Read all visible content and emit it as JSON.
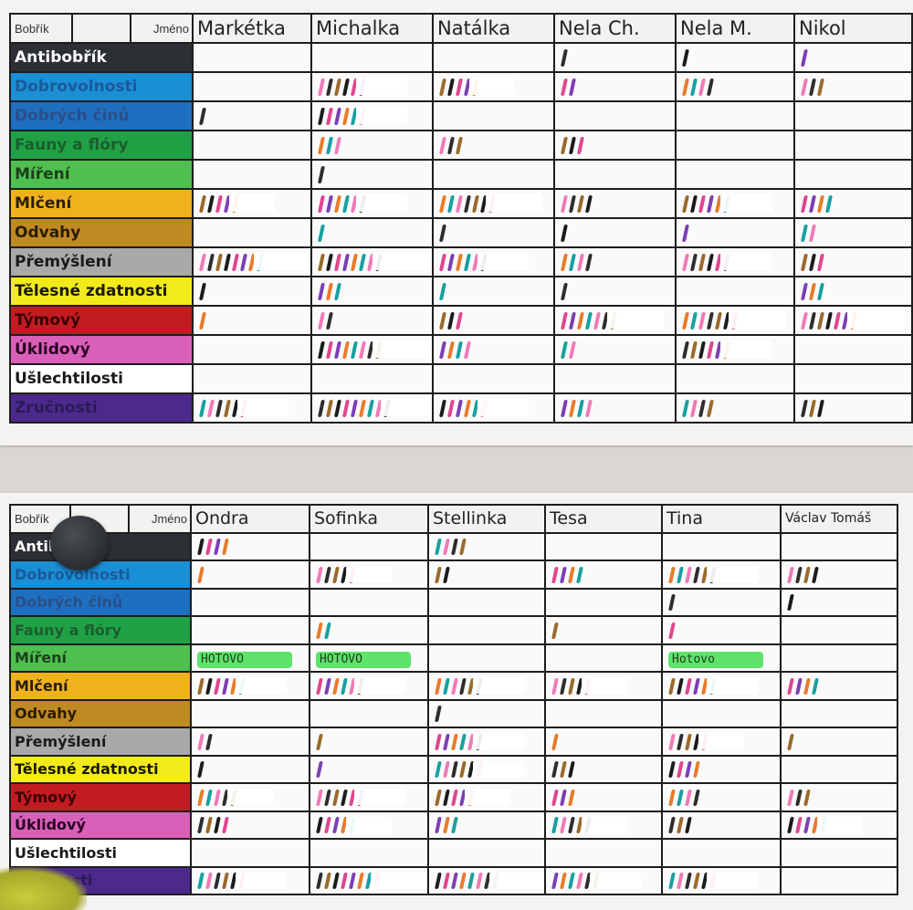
{
  "top_chart": {
    "hdr_bobrik": "Bobřík",
    "hdr_jmeno": "Jméno",
    "names": [
      "Markétka",
      "Michalka",
      "Natálka",
      "Nela Ch.",
      "Nela M.",
      "Nikol"
    ]
  },
  "bottom_chart": {
    "hdr_bobrik": "Bobřík",
    "hdr_jmeno": "Jméno",
    "names": [
      "Ondra",
      "Sofinka",
      "Stellinka",
      "Tesa",
      "Tina",
      "Václav Tomáš"
    ]
  },
  "categories": [
    {
      "label": "Antibobřík",
      "color": "#2c2f33",
      "text": "#ffffff"
    },
    {
      "label": "Dobrovolnosti",
      "color": "#1a8fd6",
      "text": "#1a5a9a"
    },
    {
      "label": "Dobrých činů",
      "color": "#1f6fc0",
      "text": "#2a4f88"
    },
    {
      "label": "Fauny a flóry",
      "color": "#20a146",
      "text": "#1a5e2c"
    },
    {
      "label": "Míření",
      "color": "#4fc04f",
      "text": "#1b3f1b"
    },
    {
      "label": "Mlčení",
      "color": "#efb21e",
      "text": "#2a1e00"
    },
    {
      "label": "Odvahy",
      "color": "#c08a23",
      "text": "#2a1b00"
    },
    {
      "label": "Přemýšlení",
      "color": "#a9a9a9",
      "text": "#1a1a1a"
    },
    {
      "label": "Tělesné zdatnosti",
      "color": "#f2ea1c",
      "text": "#1a1a00"
    },
    {
      "label": "Týmový",
      "color": "#c01c22",
      "text": "#3a0000"
    },
    {
      "label": "Úklidový",
      "color": "#d960b9",
      "text": "#2a0022"
    },
    {
      "label": "Ušlechtilosti",
      "color": "#ffffff",
      "text": "#1a1a1a"
    },
    {
      "label": "Zručnosti",
      "color": "#4b2a8c",
      "text": "#2a1a55"
    }
  ],
  "hotovo_label": "HOTOVO",
  "hotovo_label_alt": "Hotovo",
  "marks_top": [
    [
      0,
      0,
      0,
      1,
      1,
      1
    ],
    [
      0,
      6,
      5,
      2,
      4,
      3
    ],
    [
      1,
      6,
      0,
      0,
      0,
      0
    ],
    [
      0,
      3,
      3,
      3,
      0,
      0
    ],
    [
      0,
      1,
      0,
      0,
      0,
      0
    ],
    [
      5,
      6,
      7,
      4,
      6,
      4
    ],
    [
      0,
      1,
      1,
      1,
      1,
      2
    ],
    [
      8,
      8,
      6,
      4,
      6,
      3
    ],
    [
      1,
      3,
      1,
      1,
      0,
      3
    ],
    [
      1,
      2,
      3,
      7,
      7,
      7
    ],
    [
      0,
      8,
      4,
      2,
      6,
      0
    ],
    [
      0,
      0,
      0,
      0,
      0,
      0
    ],
    [
      6,
      9,
      6,
      4,
      4,
      3
    ]
  ],
  "marks_bottom": [
    [
      4,
      0,
      4,
      0,
      0,
      0
    ],
    [
      1,
      5,
      2,
      4,
      6,
      4
    ],
    [
      0,
      0,
      0,
      0,
      1,
      1
    ],
    [
      0,
      2,
      0,
      1,
      1,
      0
    ],
    [
      0,
      0,
      0,
      0,
      0,
      0
    ],
    [
      6,
      6,
      6,
      5,
      6,
      4
    ],
    [
      0,
      0,
      1,
      0,
      0,
      0
    ],
    [
      2,
      1,
      6,
      1,
      5,
      1
    ],
    [
      1,
      1,
      6,
      3,
      4,
      0
    ],
    [
      5,
      6,
      5,
      3,
      4,
      3
    ],
    [
      4,
      5,
      3,
      5,
      3,
      5
    ],
    [
      0,
      0,
      0,
      0,
      0,
      0
    ],
    [
      6,
      8,
      8,
      6,
      6,
      0
    ]
  ],
  "hotovo_cells": {
    "bottom_row": 4,
    "columns": [
      0,
      1,
      4
    ]
  }
}
